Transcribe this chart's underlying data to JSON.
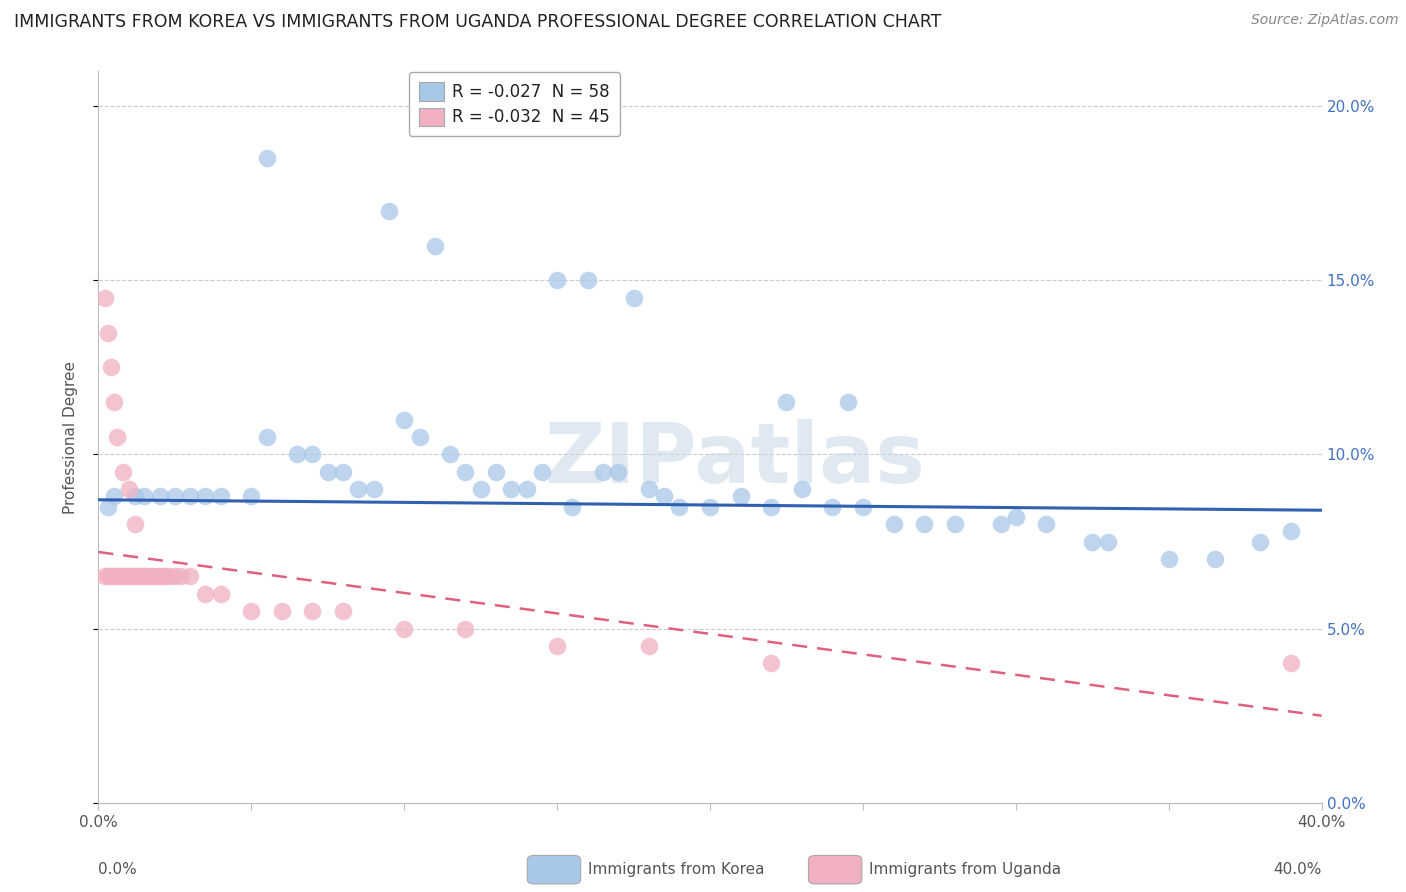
{
  "title": "IMMIGRANTS FROM KOREA VS IMMIGRANTS FROM UGANDA PROFESSIONAL DEGREE CORRELATION CHART",
  "source": "Source: ZipAtlas.com",
  "ylabel": "Professional Degree",
  "korea_color": "#a8c8e8",
  "uganda_color": "#f0b0c0",
  "trendline_korea_color": "#3060b0",
  "trendline_uganda_color": "#e06080",
  "watermark_text": "ZIPatlas",
  "legend_r_color": "#d04060",
  "legend_n_color": "#3060c0",
  "xlim": [
    0,
    40
  ],
  "ylim": [
    0,
    21
  ],
  "yticks": [
    0,
    5,
    10,
    15,
    20
  ],
  "ytick_labels": [
    "0.0%",
    "5.0%",
    "10.0%",
    "15.0%",
    "20.0%"
  ],
  "xtick_labels_bottom": [
    "0.0%",
    "",
    "",
    "",
    "40.0%"
  ],
  "korea_trend_x0": 0,
  "korea_trend_y0": 8.7,
  "korea_trend_x1": 40,
  "korea_trend_y1": 8.4,
  "uganda_trend_x0": 0,
  "uganda_trend_y0": 7.2,
  "uganda_trend_x1": 40,
  "uganda_trend_y1": 2.5,
  "korea_x": [
    5.5,
    9.5,
    11.0,
    15.0,
    17.5,
    16.0,
    22.5,
    24.5,
    0.5,
    1.2,
    1.5,
    2.0,
    2.5,
    3.0,
    3.5,
    4.0,
    5.0,
    5.5,
    6.5,
    7.0,
    7.5,
    8.0,
    8.5,
    9.0,
    10.0,
    10.5,
    11.5,
    12.0,
    12.5,
    13.0,
    13.5,
    14.0,
    14.5,
    15.5,
    16.5,
    17.0,
    18.0,
    18.5,
    19.0,
    20.0,
    21.0,
    22.0,
    23.0,
    24.0,
    25.0,
    26.0,
    27.0,
    28.0,
    29.5,
    30.0,
    31.0,
    32.5,
    33.0,
    35.0,
    36.5,
    38.0,
    39.0,
    0.3
  ],
  "korea_y": [
    18.5,
    17.0,
    16.0,
    15.0,
    14.5,
    15.0,
    11.5,
    11.5,
    8.8,
    8.8,
    8.8,
    8.8,
    8.8,
    8.8,
    8.8,
    8.8,
    8.8,
    10.5,
    10.0,
    10.0,
    9.5,
    9.5,
    9.0,
    9.0,
    11.0,
    10.5,
    10.0,
    9.5,
    9.0,
    9.5,
    9.0,
    9.0,
    9.5,
    8.5,
    9.5,
    9.5,
    9.0,
    8.8,
    8.5,
    8.5,
    8.8,
    8.5,
    9.0,
    8.5,
    8.5,
    8.0,
    8.0,
    8.0,
    8.0,
    8.2,
    8.0,
    7.5,
    7.5,
    7.0,
    7.0,
    7.5,
    7.8,
    8.5
  ],
  "uganda_x": [
    0.2,
    0.3,
    0.4,
    0.5,
    0.6,
    0.7,
    0.8,
    0.9,
    1.0,
    1.1,
    1.2,
    1.3,
    1.4,
    1.5,
    1.6,
    1.7,
    1.8,
    1.9,
    2.0,
    2.1,
    2.2,
    2.3,
    2.5,
    2.7,
    3.0,
    3.5,
    4.0,
    5.0,
    6.0,
    7.0,
    8.0,
    10.0,
    12.0,
    15.0,
    18.0,
    22.0,
    39.0,
    0.2,
    0.3,
    0.4,
    0.5,
    0.6,
    0.8,
    1.0,
    1.2
  ],
  "uganda_y": [
    6.5,
    6.5,
    6.5,
    6.5,
    6.5,
    6.5,
    6.5,
    6.5,
    6.5,
    6.5,
    6.5,
    6.5,
    6.5,
    6.5,
    6.5,
    6.5,
    6.5,
    6.5,
    6.5,
    6.5,
    6.5,
    6.5,
    6.5,
    6.5,
    6.5,
    6.0,
    6.0,
    5.5,
    5.5,
    5.5,
    5.5,
    5.0,
    5.0,
    4.5,
    4.5,
    4.0,
    4.0,
    14.5,
    13.5,
    12.5,
    11.5,
    10.5,
    9.5,
    9.0,
    8.0
  ]
}
